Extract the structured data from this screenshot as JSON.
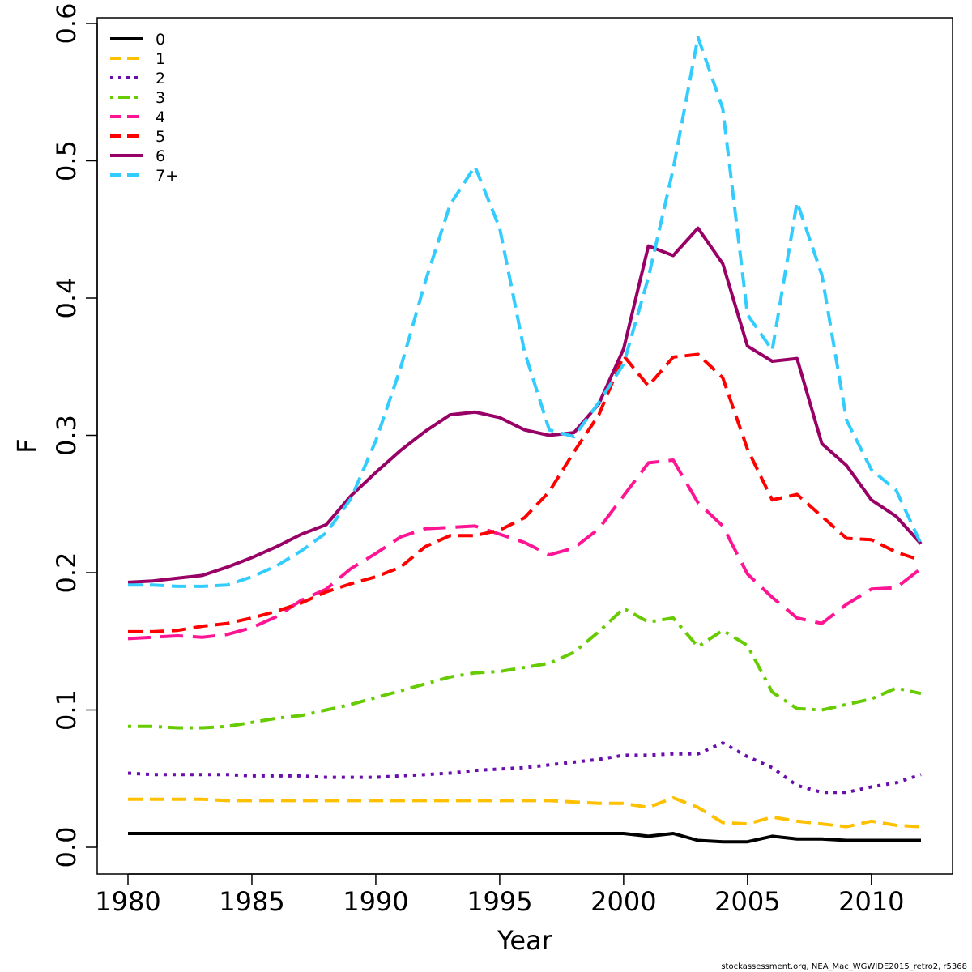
{
  "chart_data": {
    "type": "line",
    "title": "",
    "xlabel": "Year",
    "ylabel": "F",
    "xlim": [
      1980,
      2012
    ],
    "ylim": [
      0.0,
      0.6
    ],
    "x_ticks": [
      1980,
      1985,
      1990,
      1995,
      2000,
      2005,
      2010
    ],
    "y_ticks": [
      "0.0",
      "0.1",
      "0.2",
      "0.3",
      "0.4",
      "0.5",
      "0.6"
    ],
    "grid": false,
    "legend_position": "top-left",
    "credit": "stockassessment.org, NEA_Mac_WGWIDE2015_retro2, r5368",
    "x": [
      1980,
      1981,
      1982,
      1983,
      1984,
      1985,
      1986,
      1987,
      1988,
      1989,
      1990,
      1991,
      1992,
      1993,
      1994,
      1995,
      1996,
      1997,
      1998,
      1999,
      2000,
      2001,
      2002,
      2003,
      2004,
      2005,
      2006,
      2007,
      2008,
      2009,
      2010,
      2011,
      2012
    ],
    "series": [
      {
        "name": "0",
        "color": "#000000",
        "dash": "solid",
        "values": [
          0.01,
          0.01,
          0.01,
          0.01,
          0.01,
          0.01,
          0.01,
          0.01,
          0.01,
          0.01,
          0.01,
          0.01,
          0.01,
          0.01,
          0.01,
          0.01,
          0.01,
          0.01,
          0.01,
          0.01,
          0.01,
          0.008,
          0.01,
          0.005,
          0.004,
          0.004,
          0.008,
          0.006,
          0.006,
          0.005,
          0.005,
          0.005,
          0.005
        ]
      },
      {
        "name": "1",
        "color": "#FFC000",
        "dash": "dashed",
        "values": [
          0.035,
          0.035,
          0.035,
          0.035,
          0.034,
          0.034,
          0.034,
          0.034,
          0.034,
          0.034,
          0.034,
          0.034,
          0.034,
          0.034,
          0.034,
          0.034,
          0.034,
          0.034,
          0.033,
          0.032,
          0.032,
          0.029,
          0.036,
          0.029,
          0.018,
          0.017,
          0.022,
          0.019,
          0.017,
          0.015,
          0.019,
          0.016,
          0.015
        ]
      },
      {
        "name": "2",
        "color": "#6A0DAD",
        "dash": "dotted",
        "values": [
          0.054,
          0.053,
          0.053,
          0.053,
          0.053,
          0.052,
          0.052,
          0.052,
          0.051,
          0.051,
          0.051,
          0.052,
          0.053,
          0.054,
          0.056,
          0.057,
          0.058,
          0.06,
          0.062,
          0.064,
          0.067,
          0.067,
          0.068,
          0.068,
          0.076,
          0.066,
          0.058,
          0.045,
          0.04,
          0.04,
          0.044,
          0.047,
          0.053
        ]
      },
      {
        "name": "3",
        "color": "#66CC00",
        "dash": "dotdash",
        "values": [
          0.088,
          0.088,
          0.087,
          0.087,
          0.088,
          0.091,
          0.094,
          0.096,
          0.1,
          0.104,
          0.109,
          0.114,
          0.119,
          0.124,
          0.127,
          0.128,
          0.131,
          0.134,
          0.142,
          0.157,
          0.174,
          0.164,
          0.167,
          0.146,
          0.158,
          0.147,
          0.113,
          0.101,
          0.1,
          0.104,
          0.108,
          0.116,
          0.112
        ]
      },
      {
        "name": "4",
        "color": "#FF1493",
        "dash": "longdash",
        "values": [
          0.152,
          0.153,
          0.154,
          0.153,
          0.155,
          0.16,
          0.168,
          0.18,
          0.188,
          0.203,
          0.214,
          0.226,
          0.232,
          0.233,
          0.234,
          0.228,
          0.222,
          0.213,
          0.218,
          0.232,
          0.256,
          0.28,
          0.282,
          0.251,
          0.234,
          0.199,
          0.182,
          0.167,
          0.163,
          0.177,
          0.188,
          0.189,
          0.203
        ]
      },
      {
        "name": "5",
        "color": "#FF0000",
        "dash": "dashed",
        "values": [
          0.157,
          0.157,
          0.158,
          0.161,
          0.163,
          0.167,
          0.172,
          0.178,
          0.186,
          0.192,
          0.197,
          0.204,
          0.219,
          0.227,
          0.227,
          0.231,
          0.24,
          0.259,
          0.288,
          0.315,
          0.358,
          0.336,
          0.357,
          0.359,
          0.342,
          0.29,
          0.253,
          0.257,
          0.241,
          0.225,
          0.224,
          0.215,
          0.209
        ]
      },
      {
        "name": "6",
        "color": "#990066",
        "dash": "solid",
        "values": [
          0.193,
          0.194,
          0.196,
          0.198,
          0.204,
          0.211,
          0.219,
          0.228,
          0.235,
          0.256,
          0.273,
          0.289,
          0.303,
          0.315,
          0.317,
          0.313,
          0.304,
          0.3,
          0.302,
          0.323,
          0.363,
          0.438,
          0.431,
          0.451,
          0.425,
          0.365,
          0.354,
          0.356,
          0.294,
          0.278,
          0.253,
          0.241,
          0.221
        ]
      },
      {
        "name": "7+",
        "color": "#33CCFF",
        "dash": "dashed",
        "values": [
          0.191,
          0.191,
          0.19,
          0.19,
          0.191,
          0.197,
          0.205,
          0.216,
          0.229,
          0.254,
          0.296,
          0.349,
          0.412,
          0.468,
          0.496,
          0.451,
          0.361,
          0.304,
          0.299,
          0.324,
          0.352,
          0.415,
          0.494,
          0.59,
          0.538,
          0.388,
          0.362,
          0.47,
          0.417,
          0.311,
          0.275,
          0.26,
          0.221
        ]
      }
    ]
  }
}
